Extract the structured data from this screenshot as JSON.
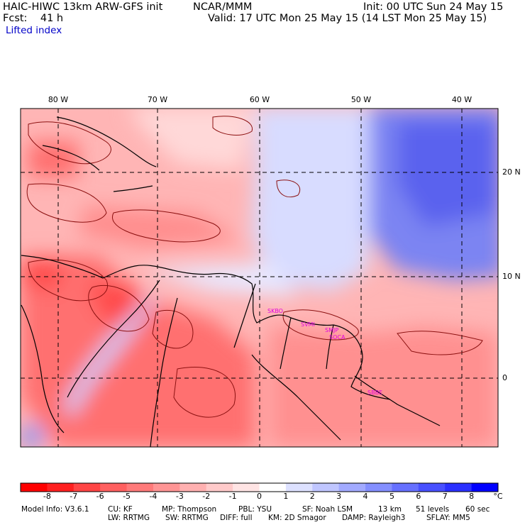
{
  "header": {
    "model_title": "HAIC-HIWC 13km ARW-GFS init",
    "org": "NCAR/MMM",
    "init": "Init: 00 UTC Sun 24 May 15",
    "fcst": "Fcst:    41 h",
    "valid": "Valid: 17 UTC Mon 25 May 15 (14 LST Mon 25 May 15)",
    "field": "Lifted index"
  },
  "map": {
    "lon_labels": [
      "80 W",
      "70 W",
      "60 W",
      "50 W",
      "40 W"
    ],
    "lat_labels": [
      "20 N",
      "10 N",
      "0"
    ],
    "stations": [
      "SKBO",
      "SVMI",
      "SMJP",
      "SOCA",
      "SBBE"
    ]
  },
  "colorbar": {
    "unit": "°C",
    "ticks": [
      "-8",
      "-7",
      "-6",
      "-5",
      "-4",
      "-3",
      "-2",
      "-1",
      "0",
      "1",
      "2",
      "3",
      "4",
      "5",
      "6",
      "7",
      "8"
    ],
    "colors": [
      "#ff0000",
      "#ff2020",
      "#ff4545",
      "#ff6060",
      "#ff7a7a",
      "#ff9595",
      "#ffb0b0",
      "#ffcaca",
      "#ffe4e4",
      "#ffffff",
      "#dde1ff",
      "#c0c6ff",
      "#a2aaff",
      "#848fff",
      "#6670ff",
      "#4850ff",
      "#2a30ff",
      "#0000ff"
    ]
  },
  "footer": {
    "line1": [
      "Model Info: V3.6.1",
      "CU: KF",
      "MP: Thompson",
      "PBL: YSU",
      "SF: Noah LSM",
      "13 km",
      "51 levels",
      "60 sec"
    ],
    "line2": [
      "LW: RRTMG",
      "SW: RRTMG",
      "DIFF: full",
      "KM: 2D Smagor",
      "DAMP: Rayleigh3",
      "SFLAY: MM5"
    ]
  }
}
